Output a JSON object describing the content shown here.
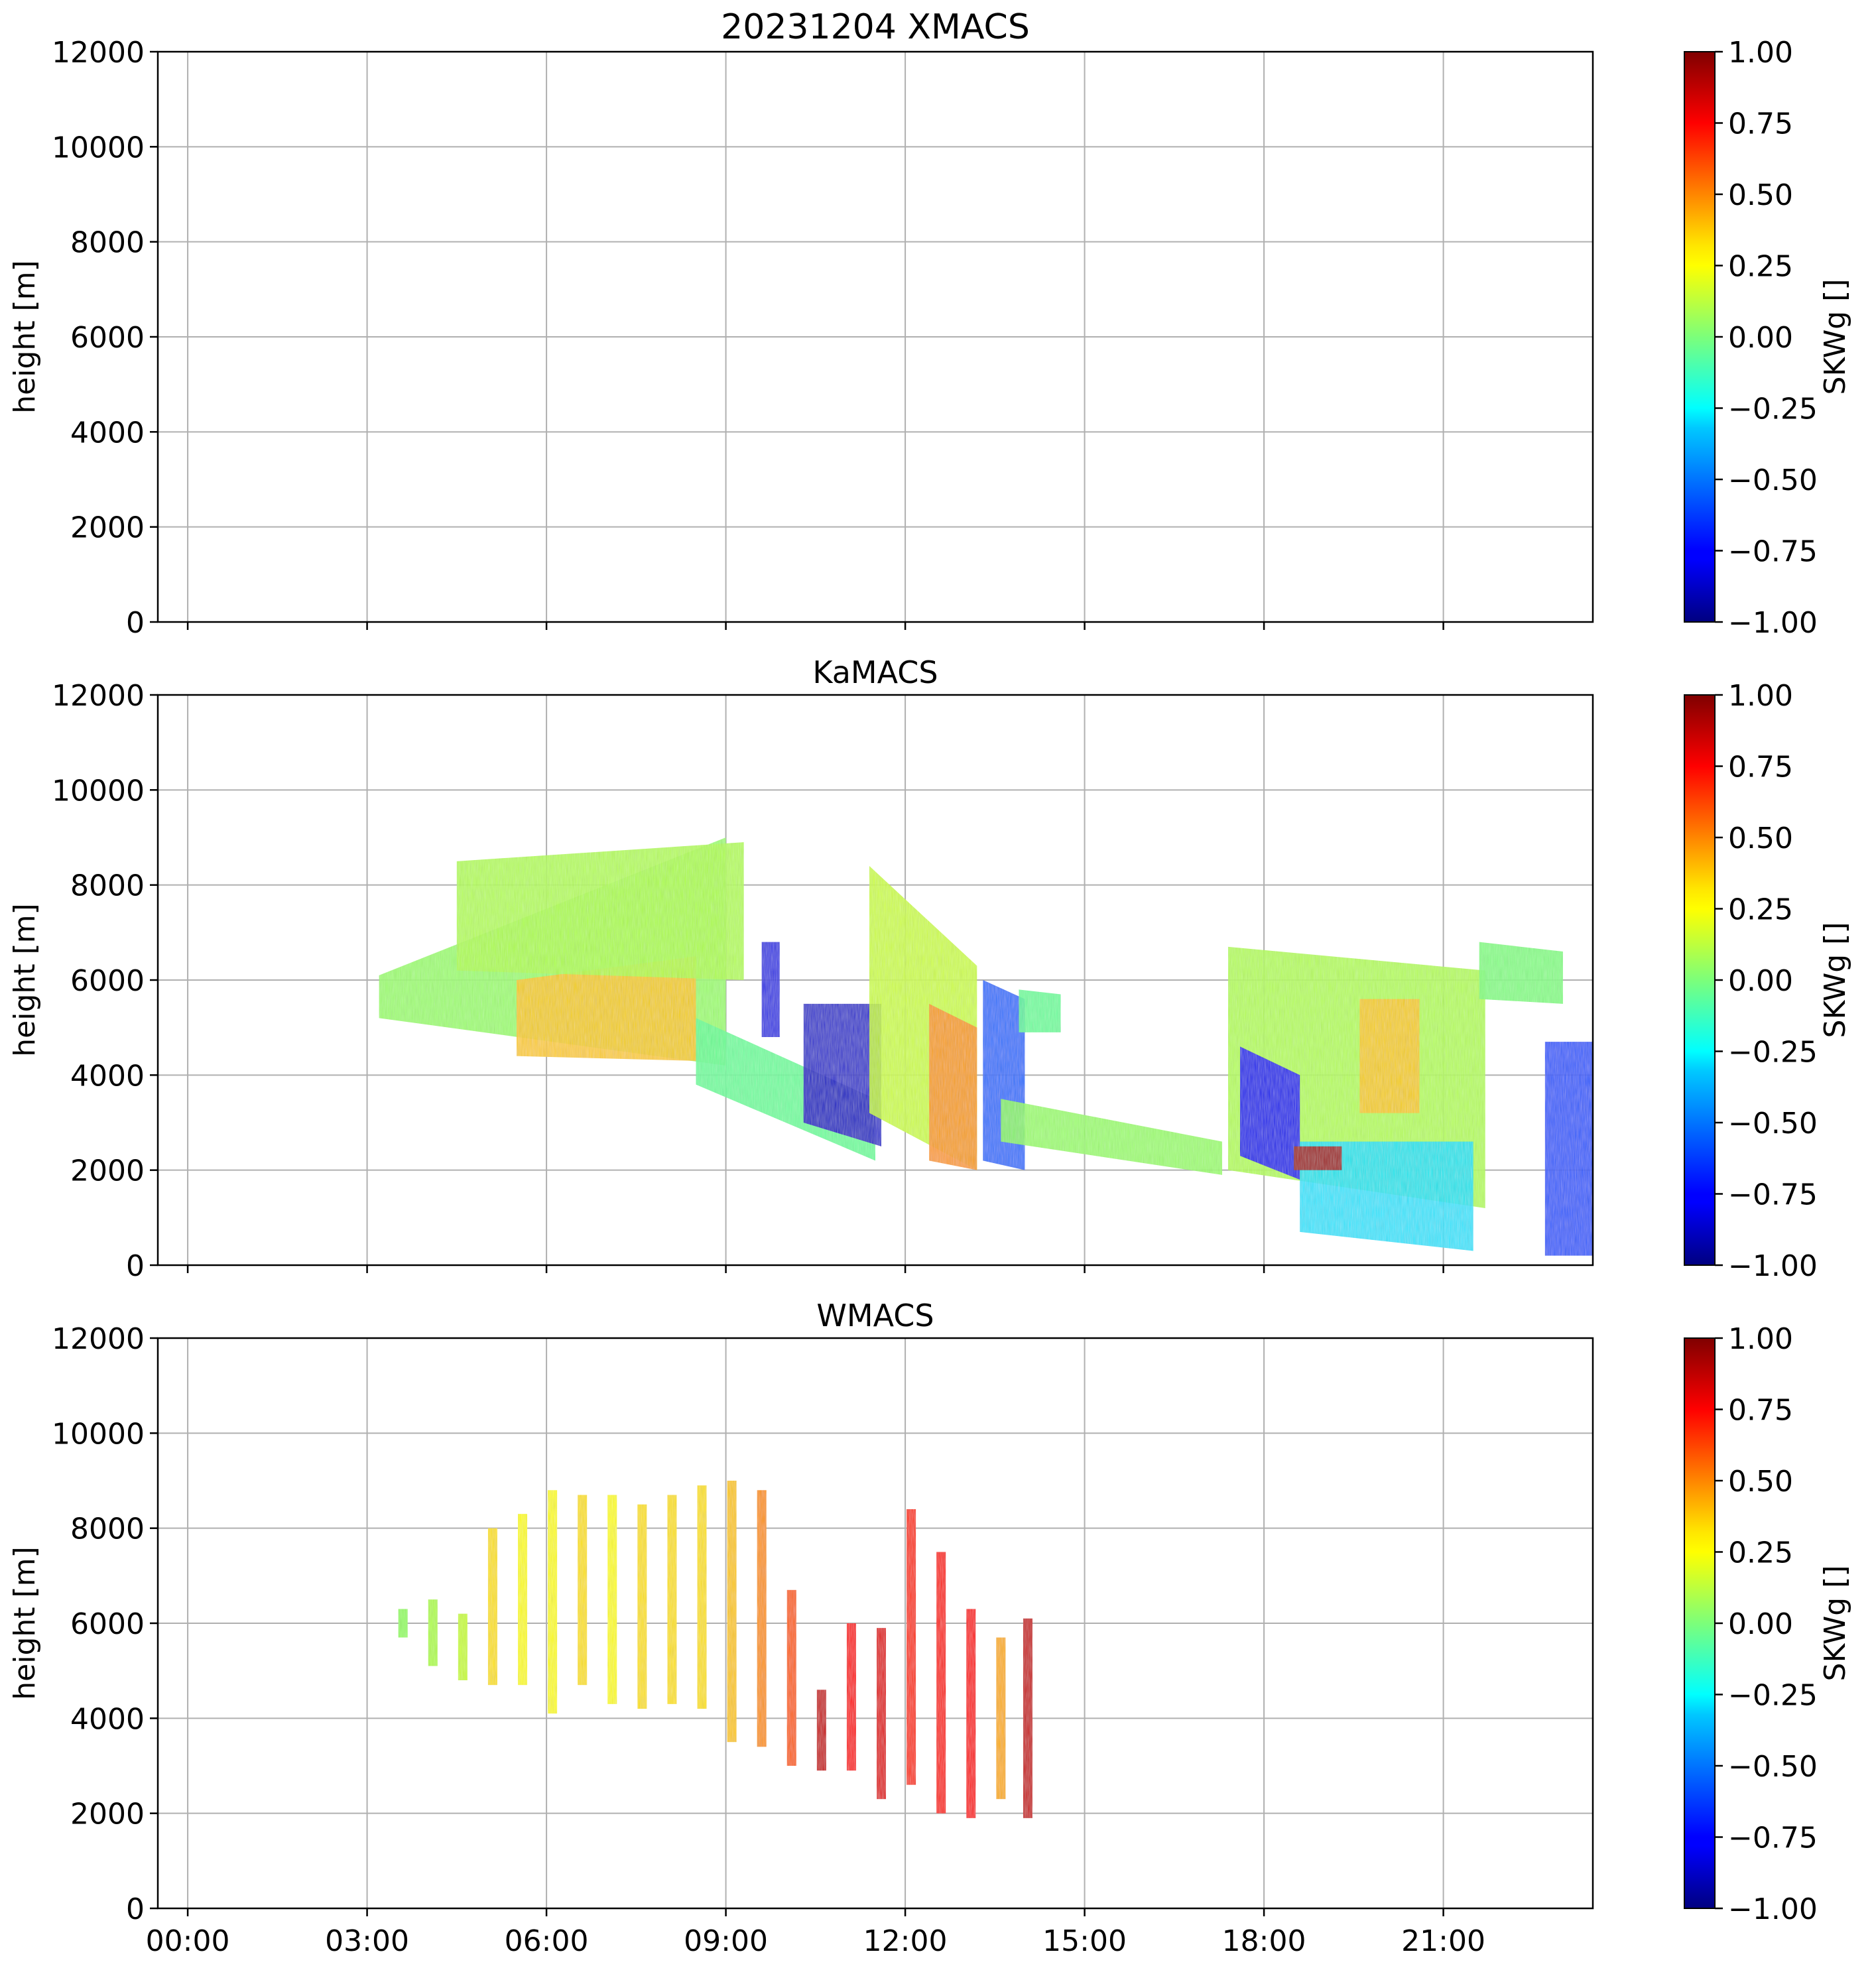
{
  "figure": {
    "title": "20231204 XMACS"
  },
  "chart_data": [
    {
      "type": "heatmap",
      "title": "20231204 XMACS",
      "instrument": "XMACS",
      "xlabel": "",
      "ylabel": "height [m]",
      "xlim_hours": [
        -0.5,
        23.5
      ],
      "ylim": [
        0,
        12000
      ],
      "x_ticks": [
        "00:00",
        "03:00",
        "06:00",
        "09:00",
        "12:00",
        "15:00",
        "18:00",
        "21:00"
      ],
      "x_tick_hours": [
        0,
        3,
        6,
        9,
        12,
        15,
        18,
        21
      ],
      "y_ticks": [
        0,
        2000,
        4000,
        6000,
        8000,
        10000,
        12000
      ],
      "x_ticklabels_visible": false,
      "grid": true,
      "colorbar": {
        "label": "SKWg []",
        "cmap": "jet",
        "vmin": -1.0,
        "vmax": 1.0,
        "ticks": [
          "1.00",
          "0.75",
          "0.50",
          "0.25",
          "0.00",
          "−0.25",
          "−0.50",
          "−0.75",
          "−1.00"
        ]
      },
      "regions": []
    },
    {
      "type": "heatmap",
      "title": "KaMACS",
      "instrument": "KaMACS",
      "xlabel": "",
      "ylabel": "height [m]",
      "xlim_hours": [
        -0.5,
        23.5
      ],
      "ylim": [
        0,
        12000
      ],
      "x_ticks": [
        "00:00",
        "03:00",
        "06:00",
        "09:00",
        "12:00",
        "15:00",
        "18:00",
        "21:00"
      ],
      "x_tick_hours": [
        0,
        3,
        6,
        9,
        12,
        15,
        18,
        21
      ],
      "y_ticks": [
        0,
        2000,
        4000,
        6000,
        8000,
        10000,
        12000
      ],
      "x_ticklabels_visible": false,
      "grid": true,
      "colorbar": {
        "label": "SKWg []",
        "cmap": "jet",
        "vmin": -1.0,
        "vmax": 1.0,
        "ticks": [
          "1.00",
          "0.75",
          "0.50",
          "0.25",
          "0.00",
          "−0.25",
          "−0.50",
          "−0.75",
          "−1.00"
        ]
      },
      "regions": [
        {
          "name": "main-cloud-base",
          "t0": 3.2,
          "t1": 9.0,
          "top0": 6100,
          "top1": 9000,
          "bot0": 5200,
          "bot1": 4200,
          "value": 0.05
        },
        {
          "name": "main-cloud-core",
          "t0": 5.5,
          "t1": 8.5,
          "top0": 6000,
          "top1": 6500,
          "bot0": 4400,
          "bot1": 4300,
          "value": 0.35
        },
        {
          "name": "fall-streak-upper",
          "t0": 4.5,
          "t1": 9.3,
          "top0": 8500,
          "top1": 8900,
          "bot0": 6200,
          "bot1": 6000,
          "value": 0.1
        },
        {
          "name": "descending-layer",
          "t0": 8.5,
          "t1": 11.5,
          "top0": 5200,
          "top1": 3500,
          "bot0": 3800,
          "bot1": 2200,
          "value": -0.05
        },
        {
          "name": "negative-core-1",
          "t0": 10.3,
          "t1": 11.6,
          "top0": 5500,
          "top1": 5500,
          "bot0": 3000,
          "bot1": 2500,
          "value": -0.85
        },
        {
          "name": "negative-streak",
          "t0": 9.6,
          "t1": 9.9,
          "top0": 6800,
          "top1": 6800,
          "bot0": 4800,
          "bot1": 4800,
          "value": -0.8
        },
        {
          "name": "mid-plume",
          "t0": 11.4,
          "t1": 13.2,
          "top0": 8400,
          "top1": 6300,
          "bot0": 3200,
          "bot1": 2000,
          "value": 0.15
        },
        {
          "name": "mid-plume-warm",
          "t0": 12.4,
          "t1": 13.2,
          "top0": 5500,
          "top1": 5000,
          "bot0": 2200,
          "bot1": 2000,
          "value": 0.45
        },
        {
          "name": "streak-13h",
          "t0": 13.3,
          "t1": 14.0,
          "top0": 6000,
          "top1": 5600,
          "bot0": 2200,
          "bot1": 2000,
          "value": -0.55
        },
        {
          "name": "low-layer",
          "t0": 13.6,
          "t1": 17.3,
          "top0": 3500,
          "top1": 2600,
          "bot0": 2600,
          "bot1": 1900,
          "value": 0.05
        },
        {
          "name": "cell-14h",
          "t0": 13.9,
          "t1": 14.6,
          "top0": 5800,
          "top1": 5700,
          "bot0": 4900,
          "bot1": 4900,
          "value": -0.05
        },
        {
          "name": "right-cloud",
          "t0": 17.4,
          "t1": 21.7,
          "top0": 6700,
          "top1": 6200,
          "bot0": 2000,
          "bot1": 1200,
          "value": 0.1
        },
        {
          "name": "right-cloud-neg",
          "t0": 17.6,
          "t1": 18.6,
          "top0": 4600,
          "top1": 4000,
          "bot0": 2300,
          "bot1": 1800,
          "value": -0.75
        },
        {
          "name": "right-cloud-warm",
          "t0": 19.6,
          "t1": 20.6,
          "top0": 5600,
          "top1": 5600,
          "bot0": 3200,
          "bot1": 3200,
          "value": 0.35
        },
        {
          "name": "right-cloud-lower",
          "t0": 18.6,
          "t1": 21.5,
          "top0": 2600,
          "top1": 2600,
          "bot0": 700,
          "bot1": 300,
          "value": -0.3
        },
        {
          "name": "red-patch",
          "t0": 18.5,
          "t1": 19.3,
          "top0": 2500,
          "top1": 2500,
          "bot0": 2000,
          "bot1": 2000,
          "value": 0.9
        },
        {
          "name": "right-edge-cell",
          "t0": 21.6,
          "t1": 23.0,
          "top0": 6800,
          "top1": 6600,
          "bot0": 5600,
          "bot1": 5500,
          "value": 0.0
        },
        {
          "name": "right-edge-column",
          "t0": 22.7,
          "t1": 23.5,
          "top0": 4700,
          "top1": 4700,
          "bot0": 200,
          "bot1": 200,
          "value": -0.6
        }
      ]
    },
    {
      "type": "heatmap",
      "title": "WMACS",
      "instrument": "WMACS",
      "xlabel": "",
      "ylabel": "height [m]",
      "xlim_hours": [
        -0.5,
        23.5
      ],
      "ylim": [
        0,
        12000
      ],
      "x_ticks": [
        "00:00",
        "03:00",
        "06:00",
        "09:00",
        "12:00",
        "15:00",
        "18:00",
        "21:00"
      ],
      "x_tick_hours": [
        0,
        3,
        6,
        9,
        12,
        15,
        18,
        21
      ],
      "y_ticks": [
        0,
        2000,
        4000,
        6000,
        8000,
        10000,
        12000
      ],
      "x_ticklabels_visible": true,
      "grid": true,
      "colorbar": {
        "label": "SKWg []",
        "cmap": "jet",
        "vmin": -1.0,
        "vmax": 1.0,
        "ticks": [
          "1.00",
          "0.75",
          "0.50",
          "0.25",
          "0.00",
          "−0.25",
          "−0.50",
          "−0.75",
          "−1.00"
        ]
      },
      "columns": [
        {
          "t": 3.6,
          "top": 6300,
          "bot": 5700,
          "value": 0.05
        },
        {
          "t": 4.1,
          "top": 6500,
          "bot": 5100,
          "value": 0.1
        },
        {
          "t": 4.6,
          "top": 6200,
          "bot": 4800,
          "value": 0.15
        },
        {
          "t": 5.1,
          "top": 8000,
          "bot": 4700,
          "value": 0.3
        },
        {
          "t": 5.6,
          "top": 8300,
          "bot": 4700,
          "value": 0.25
        },
        {
          "t": 6.1,
          "top": 8800,
          "bot": 4100,
          "value": 0.25
        },
        {
          "t": 6.6,
          "top": 8700,
          "bot": 4700,
          "value": 0.3
        },
        {
          "t": 7.1,
          "top": 8700,
          "bot": 4300,
          "value": 0.25
        },
        {
          "t": 7.6,
          "top": 8500,
          "bot": 4200,
          "value": 0.3
        },
        {
          "t": 8.1,
          "top": 8700,
          "bot": 4300,
          "value": 0.3
        },
        {
          "t": 8.6,
          "top": 8900,
          "bot": 4200,
          "value": 0.3
        },
        {
          "t": 9.1,
          "top": 9000,
          "bot": 3500,
          "value": 0.35
        },
        {
          "t": 9.6,
          "top": 8800,
          "bot": 3400,
          "value": 0.45
        },
        {
          "t": 10.1,
          "top": 6700,
          "bot": 3000,
          "value": 0.55
        },
        {
          "t": 10.6,
          "top": 4600,
          "bot": 2900,
          "value": 0.85
        },
        {
          "t": 11.1,
          "top": 6000,
          "bot": 2900,
          "value": 0.75
        },
        {
          "t": 11.6,
          "top": 5900,
          "bot": 2300,
          "value": 0.8
        },
        {
          "t": 12.1,
          "top": 8400,
          "bot": 2600,
          "value": 0.65
        },
        {
          "t": 12.6,
          "top": 7500,
          "bot": 2000,
          "value": 0.7
        },
        {
          "t": 13.1,
          "top": 6300,
          "bot": 1900,
          "value": 0.75
        },
        {
          "t": 13.6,
          "top": 5700,
          "bot": 2300,
          "value": 0.4
        },
        {
          "t": 14.05,
          "top": 6100,
          "bot": 1900,
          "value": 0.85
        }
      ]
    }
  ]
}
